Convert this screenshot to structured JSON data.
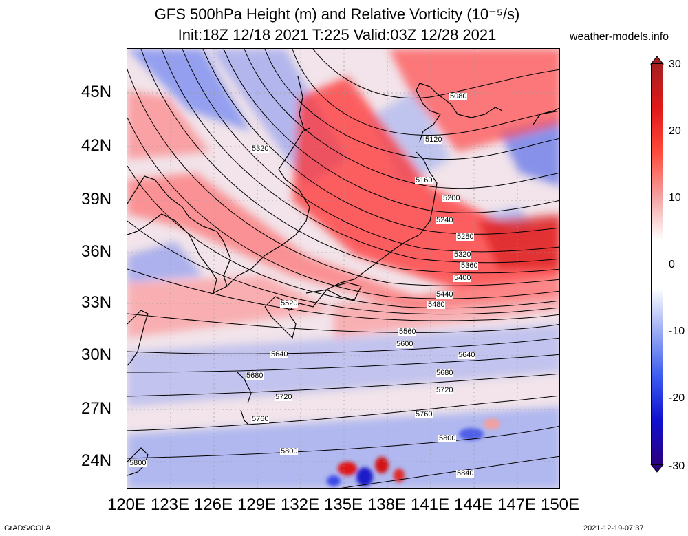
{
  "title": {
    "line1": "GFS 500hPa Height (m) and Relative Vorticity (10⁻⁵/s)",
    "line2": "Init:18Z 12/18 2021 T:225 Valid:03Z 12/28 2021"
  },
  "credit": "weather-models.info",
  "lat_labels": [
    "45N",
    "42N",
    "39N",
    "36N",
    "33N",
    "30N",
    "27N",
    "24N"
  ],
  "lon_labels": [
    "120E",
    "123E",
    "126E",
    "129E",
    "132E",
    "135E",
    "138E",
    "141E",
    "144E",
    "147E",
    "150E"
  ],
  "contour_labels": [
    "5080",
    "5120",
    "5160",
    "5200",
    "5240",
    "5280",
    "5320",
    "5360",
    "5400",
    "5440",
    "5480",
    "5520",
    "5560",
    "5600",
    "5640",
    "5680",
    "5720",
    "5760",
    "5800",
    "5840"
  ],
  "colorbar": {
    "labels": [
      "30",
      "20",
      "10",
      "0",
      "-10",
      "-20",
      "-30"
    ],
    "colors": [
      "#2a0080",
      "#1010d0",
      "#3a5cf0",
      "#9aaaf2",
      "#ffffff",
      "#ffffff",
      "#f4a0a0",
      "#ff4a3a",
      "#e01818",
      "#a52020"
    ]
  },
  "footer": {
    "left": "GrADS/COLA",
    "right": "2021-12-19-07:37"
  }
}
